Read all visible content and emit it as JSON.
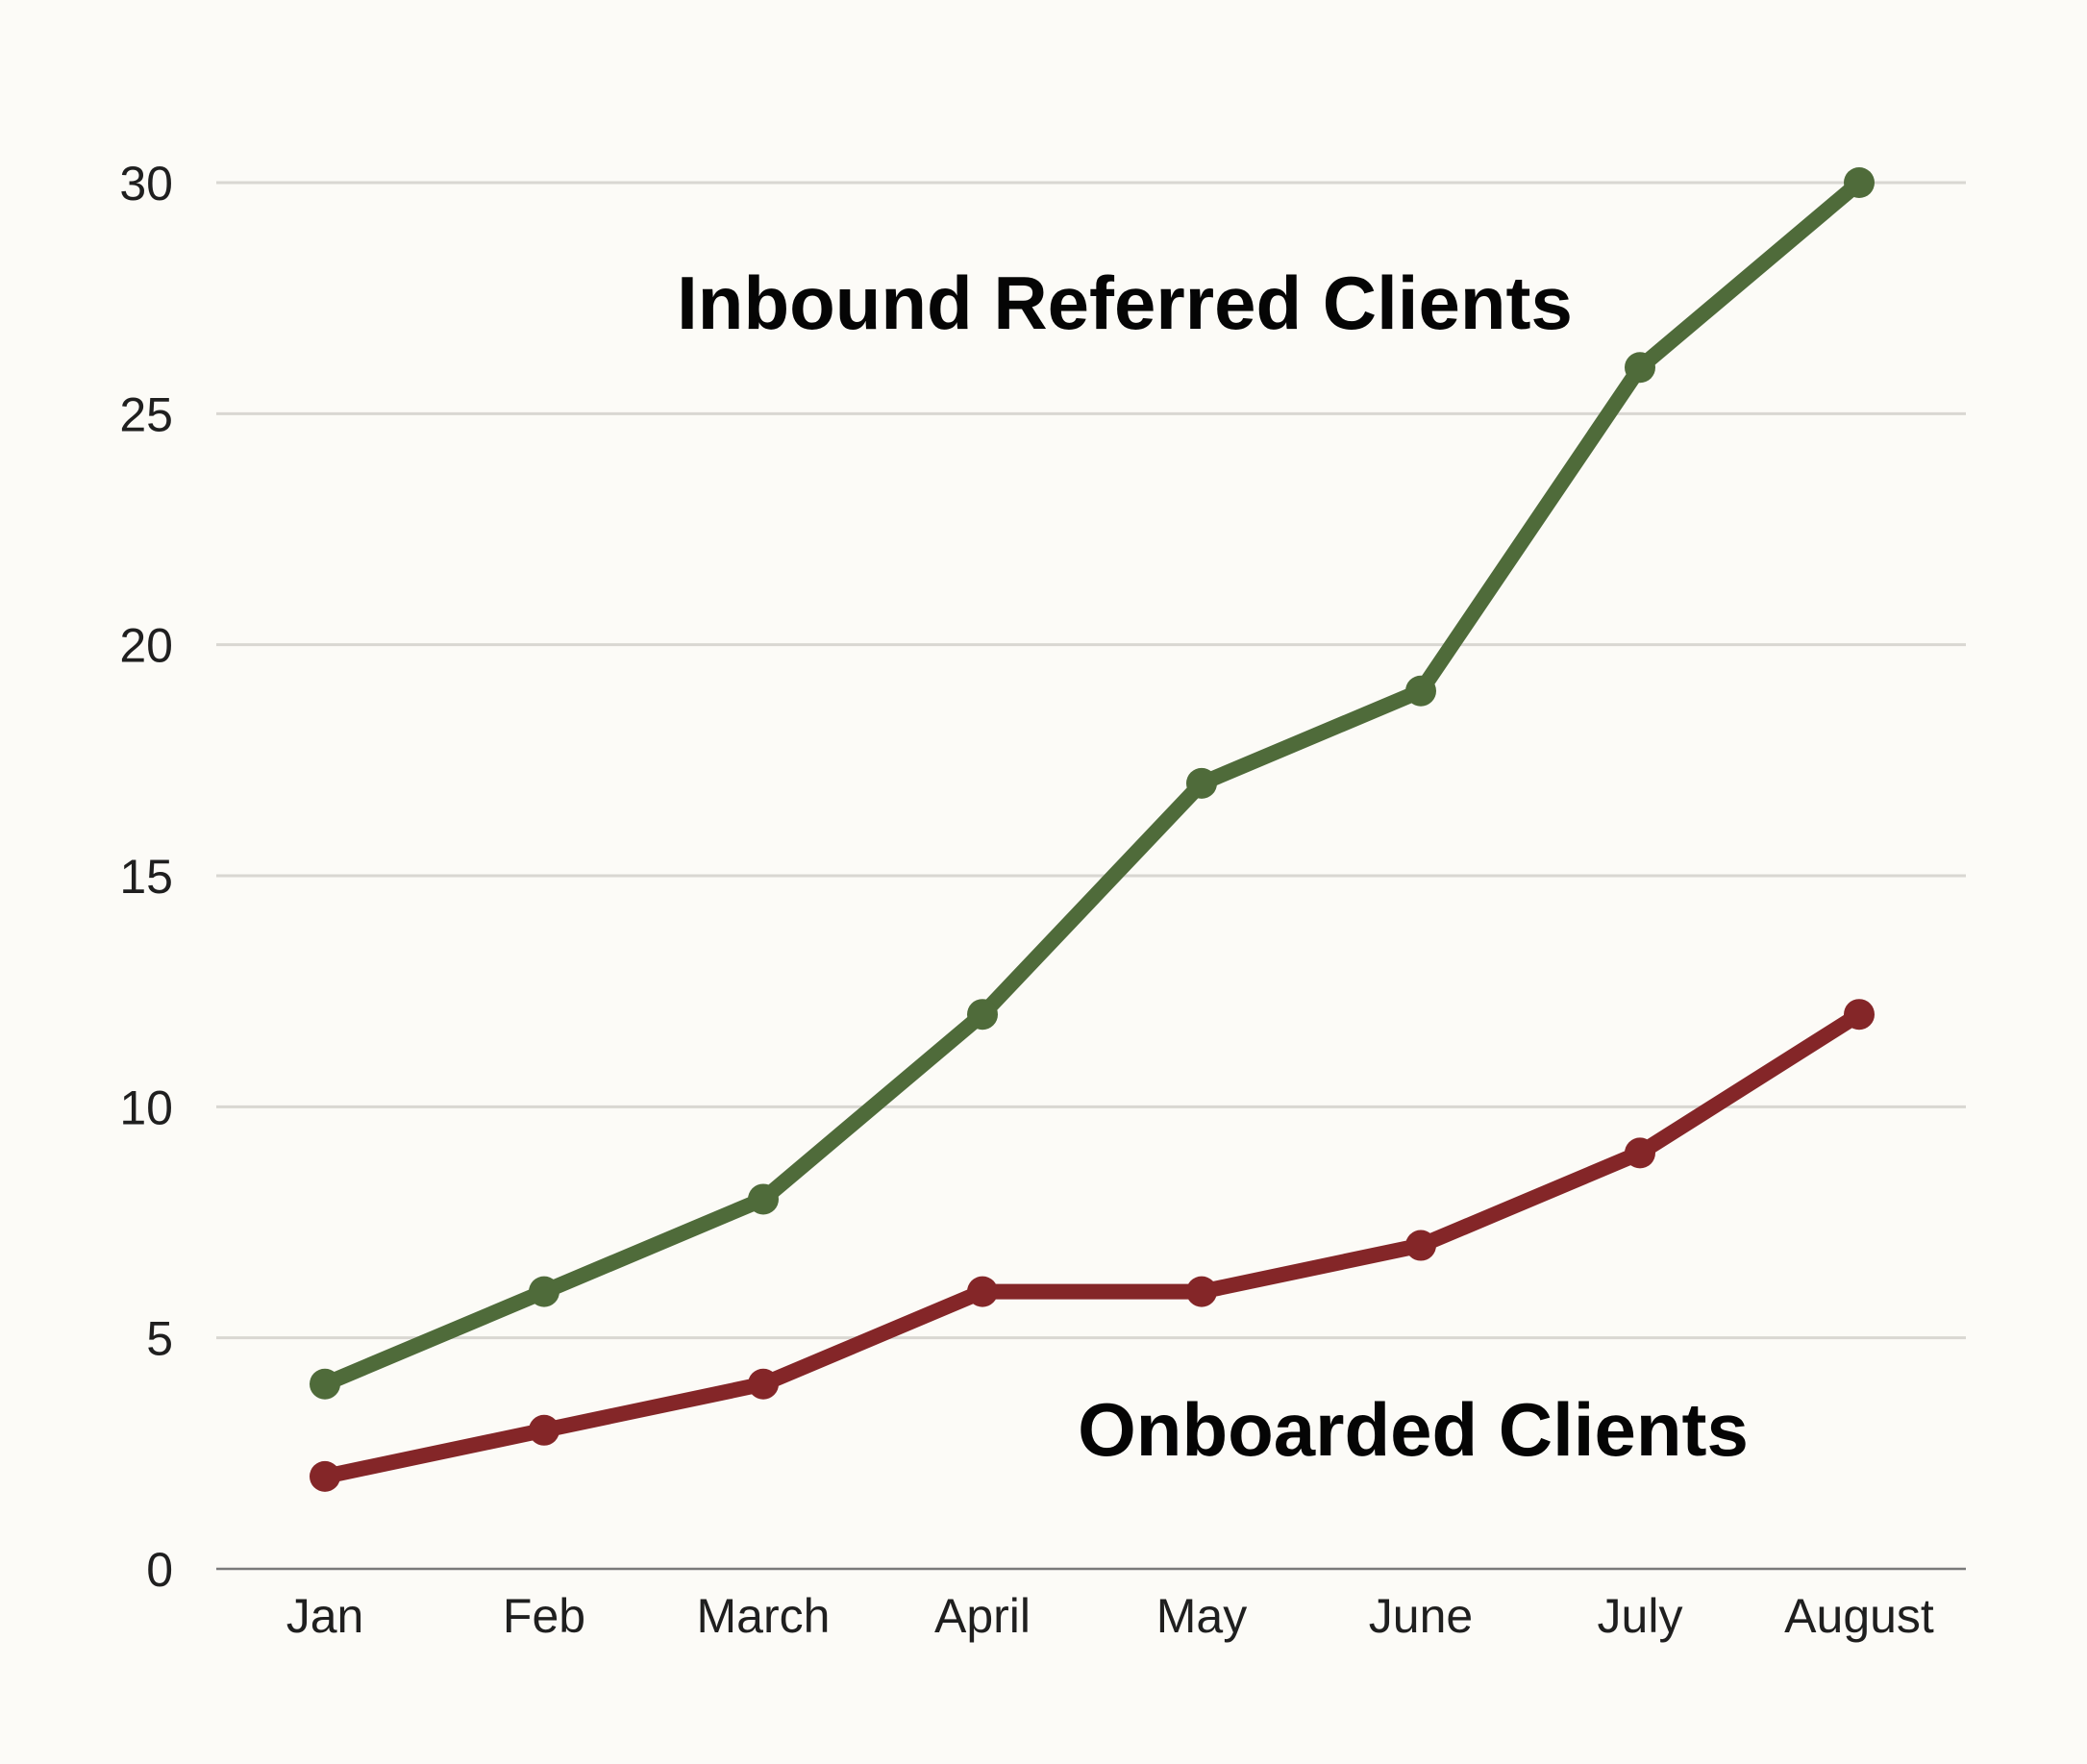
{
  "chart_data": {
    "type": "line",
    "categories": [
      "Jan",
      "Feb",
      "March",
      "April",
      "May",
      "June",
      "July",
      "August"
    ],
    "series": [
      {
        "name": "Inbound Referred Clients",
        "values": [
          4,
          6,
          8,
          12,
          17,
          19,
          26,
          30
        ],
        "color": "#4f6b3a"
      },
      {
        "name": "Onboarded Clients",
        "values": [
          2,
          3,
          4,
          6,
          6,
          7,
          9,
          12
        ],
        "color": "#842628"
      }
    ],
    "title": "",
    "xlabel": "",
    "ylabel": "",
    "ylim": [
      0,
      30
    ],
    "yticks": [
      0,
      5,
      10,
      15,
      20,
      25,
      30
    ],
    "grid": true,
    "legend": "inline labels"
  }
}
